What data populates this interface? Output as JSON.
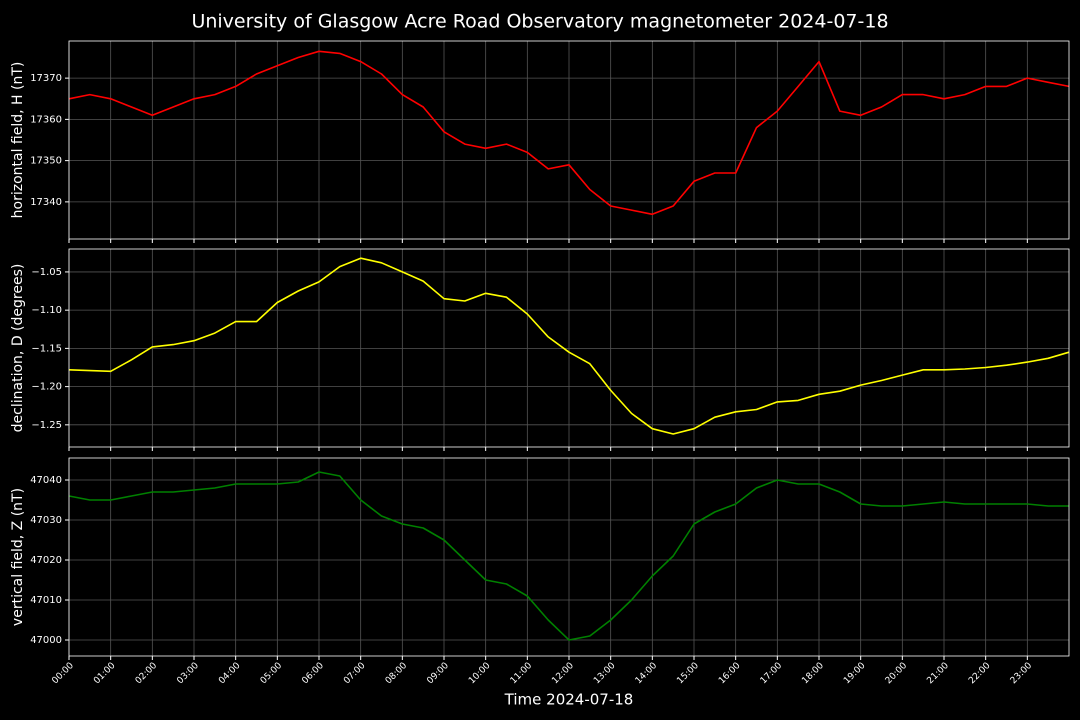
{
  "chart_data": [
    {
      "type": "line",
      "title": "University of Glasgow Acre Road Observatory magnetometer 2024-07-18",
      "ylabel": "horizontal field, H (nT)",
      "color": "#ff0000",
      "grid": true,
      "xlim": [
        0,
        24
      ],
      "ylim": [
        17331,
        17379
      ],
      "xticks": [
        0,
        1,
        2,
        3,
        4,
        5,
        6,
        7,
        8,
        9,
        10,
        11,
        12,
        13,
        14,
        15,
        16,
        17,
        18,
        19,
        20,
        21,
        22,
        23
      ],
      "yticks": [
        17340,
        17350,
        17360,
        17370
      ],
      "x": [
        0,
        0.5,
        1,
        1.5,
        2,
        2.5,
        3,
        3.5,
        4,
        4.5,
        5,
        5.5,
        6,
        6.5,
        7,
        7.5,
        8,
        8.5,
        9,
        9.5,
        10,
        10.5,
        11,
        11.5,
        12,
        12.5,
        13,
        13.5,
        14,
        14.5,
        15,
        15.5,
        16,
        16.5,
        17,
        17.5,
        18,
        18.5,
        19,
        19.5,
        20,
        20.5,
        21,
        21.5,
        22,
        22.5,
        23,
        23.5,
        24
      ],
      "values": [
        17365,
        17366,
        17365,
        17363,
        17361,
        17363,
        17365,
        17366,
        17368,
        17371,
        17373,
        17375,
        17376.5,
        17376,
        17374,
        17371,
        17366,
        17363,
        17357,
        17354,
        17353,
        17354,
        17352,
        17348,
        17349,
        17343,
        17339,
        17338,
        17337,
        17339,
        17345,
        17347,
        17347,
        17358,
        17362,
        17368,
        17374,
        17362,
        17361,
        17363,
        17366,
        17366,
        17365,
        17366,
        17368,
        17368,
        17370,
        17369,
        17368
      ]
    },
    {
      "type": "line",
      "ylabel": "declination, D (degrees)",
      "color": "#ffff00",
      "grid": true,
      "xlim": [
        0,
        24
      ],
      "ylim": [
        -1.279,
        -1.02
      ],
      "xticks": [
        0,
        1,
        2,
        3,
        4,
        5,
        6,
        7,
        8,
        9,
        10,
        11,
        12,
        13,
        14,
        15,
        16,
        17,
        18,
        19,
        20,
        21,
        22,
        23
      ],
      "yticks": [
        {
          "value": -1.05,
          "label": "−1.05"
        },
        {
          "value": -1.1,
          "label": "−1.10"
        },
        {
          "value": -1.15,
          "label": "−1.15"
        },
        {
          "value": -1.2,
          "label": "−1.20"
        },
        {
          "value": -1.25,
          "label": "−1.25"
        }
      ],
      "x": [
        0,
        0.5,
        1,
        1.5,
        2,
        2.5,
        3,
        3.5,
        4,
        4.5,
        5,
        5.5,
        6,
        6.5,
        7,
        7.5,
        8,
        8.5,
        9,
        9.5,
        10,
        10.5,
        11,
        11.5,
        12,
        12.5,
        13,
        13.5,
        14,
        14.5,
        15,
        15.5,
        16,
        16.5,
        17,
        17.5,
        18,
        18.5,
        19,
        19.5,
        20,
        20.5,
        21,
        21.5,
        22,
        22.5,
        23,
        23.5,
        24
      ],
      "values": [
        -1.178,
        -1.179,
        -1.18,
        -1.165,
        -1.148,
        -1.145,
        -1.14,
        -1.13,
        -1.115,
        -1.115,
        -1.09,
        -1.075,
        -1.063,
        -1.043,
        -1.032,
        -1.038,
        -1.05,
        -1.062,
        -1.085,
        -1.088,
        -1.078,
        -1.083,
        -1.105,
        -1.135,
        -1.155,
        -1.17,
        -1.205,
        -1.235,
        -1.255,
        -1.262,
        -1.255,
        -1.24,
        -1.233,
        -1.23,
        -1.22,
        -1.218,
        -1.21,
        -1.206,
        -1.198,
        -1.192,
        -1.185,
        -1.178,
        -1.178,
        -1.177,
        -1.175,
        -1.172,
        -1.168,
        -1.163,
        -1.155
      ]
    },
    {
      "type": "line",
      "ylabel": "vertical field, Z (nT)",
      "xlabel": "Time 2024-07-18",
      "color": "#008000",
      "grid": true,
      "xlim": [
        0,
        24
      ],
      "ylim": [
        46996,
        47045.5
      ],
      "xticks": [
        {
          "value": 0,
          "label": "00:00"
        },
        {
          "value": 1,
          "label": "01:00"
        },
        {
          "value": 2,
          "label": "02:00"
        },
        {
          "value": 3,
          "label": "03:00"
        },
        {
          "value": 4,
          "label": "04:00"
        },
        {
          "value": 5,
          "label": "05:00"
        },
        {
          "value": 6,
          "label": "06:00"
        },
        {
          "value": 7,
          "label": "07:00"
        },
        {
          "value": 8,
          "label": "08:00"
        },
        {
          "value": 9,
          "label": "09:00"
        },
        {
          "value": 10,
          "label": "10:00"
        },
        {
          "value": 11,
          "label": "11:00"
        },
        {
          "value": 12,
          "label": "12:00"
        },
        {
          "value": 13,
          "label": "13:00"
        },
        {
          "value": 14,
          "label": "14:00"
        },
        {
          "value": 15,
          "label": "15:00"
        },
        {
          "value": 16,
          "label": "16:00"
        },
        {
          "value": 17,
          "label": "17:00"
        },
        {
          "value": 18,
          "label": "18:00"
        },
        {
          "value": 19,
          "label": "19:00"
        },
        {
          "value": 20,
          "label": "20:00"
        },
        {
          "value": 21,
          "label": "21:00"
        },
        {
          "value": 22,
          "label": "22:00"
        },
        {
          "value": 23,
          "label": "23:00"
        }
      ],
      "yticks": [
        47000,
        47010,
        47020,
        47030,
        47040
      ],
      "x": [
        0,
        0.5,
        1,
        1.5,
        2,
        2.5,
        3,
        3.5,
        4,
        4.5,
        5,
        5.5,
        6,
        6.5,
        7,
        7.5,
        8,
        8.5,
        9,
        9.5,
        10,
        10.5,
        11,
        11.5,
        12,
        12.5,
        13,
        13.5,
        14,
        14.5,
        15,
        15.5,
        16,
        16.5,
        17,
        17.5,
        18,
        18.5,
        19,
        19.5,
        20,
        20.5,
        21,
        21.5,
        22,
        22.5,
        23,
        23.5,
        24
      ],
      "values": [
        47036,
        47035,
        47035,
        47036,
        47037,
        47037,
        47037.5,
        47038,
        47039,
        47039,
        47039,
        47039.5,
        47042,
        47041,
        47035,
        47031,
        47029,
        47028,
        47025,
        47020,
        47015,
        47014,
        47011,
        47005,
        47000,
        47001,
        47005,
        47010,
        47016,
        47021,
        47029,
        47032,
        47034,
        47038,
        47040,
        47039,
        47039,
        47037,
        47034,
        47033.5,
        47033.5,
        47034,
        47034.5,
        47034,
        47034,
        47034,
        47034,
        47033.5,
        47033.5
      ]
    }
  ]
}
